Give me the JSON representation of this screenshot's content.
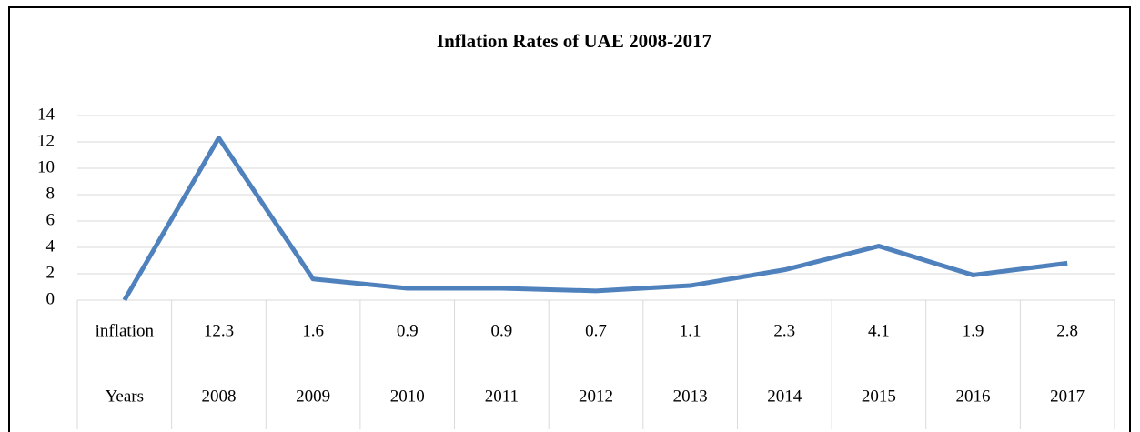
{
  "chart_data": {
    "type": "line",
    "title": "Inflation Rates of UAE 2008-2017",
    "categories": [
      "Years",
      "2008",
      "2009",
      "2010",
      "2011",
      "2012",
      "2013",
      "2014",
      "2015",
      "2016",
      "2017"
    ],
    "series": [
      {
        "name": "inflation",
        "color": "#4f81bd",
        "values": [
          0,
          12.3,
          1.6,
          0.9,
          0.9,
          0.7,
          1.1,
          2.3,
          4.1,
          1.9,
          2.8
        ]
      }
    ],
    "ylim": [
      0,
      14
    ],
    "yticks": [
      0,
      2,
      4,
      6,
      8,
      10,
      12,
      14
    ],
    "grid": true
  }
}
